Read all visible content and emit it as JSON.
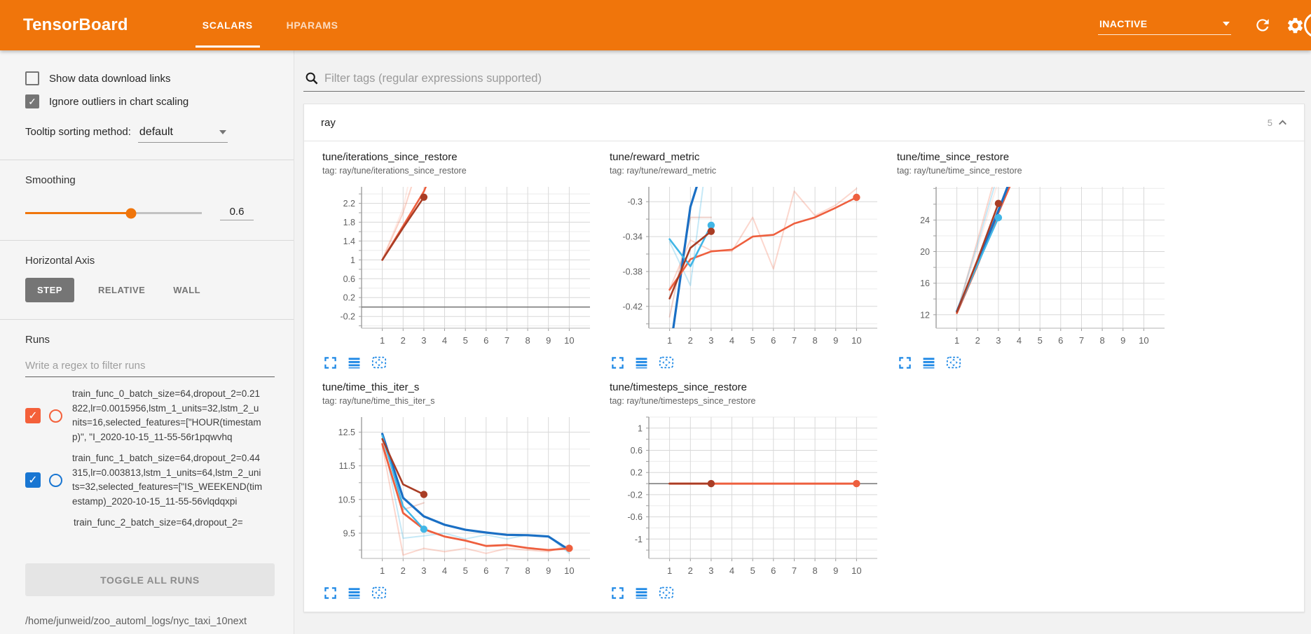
{
  "header": {
    "logo": "TensorBoard",
    "tabs": [
      {
        "label": "SCALARS",
        "active": true
      },
      {
        "label": "HPARAMS",
        "active": false
      }
    ],
    "status": "INACTIVE",
    "colors": {
      "header_bg": "#f0750b",
      "accent": "#f0750b",
      "icon_blue": "#1e88e5"
    }
  },
  "sidebar": {
    "checkboxes": [
      {
        "label": "Show data download links",
        "checked": false
      },
      {
        "label": "Ignore outliers in chart scaling",
        "checked": true
      }
    ],
    "tooltip_sorting": {
      "label": "Tooltip sorting method:",
      "value": "default"
    },
    "smoothing": {
      "label": "Smoothing",
      "value": "0.6",
      "percent": 60
    },
    "horizontal_axis": {
      "label": "Horizontal Axis",
      "options": [
        {
          "label": "STEP",
          "active": true
        },
        {
          "label": "RELATIVE",
          "active": false
        },
        {
          "label": "WALL",
          "active": false
        }
      ]
    },
    "runs": {
      "label": "Runs",
      "filter_placeholder": "Write a regex to filter runs",
      "items": [
        {
          "label": "train_func_0_batch_size=64,dropout_2=0.21822,lr=0.0015956,lstm_1_units=32,lstm_2_units=16,selected_features=[\"HOUR(timestamp)\", \"I_2020-10-15_11-55-56r1pqwvhq",
          "checked": true,
          "color": "#f4603a"
        },
        {
          "label": "train_func_1_batch_size=64,dropout_2=0.44315,lr=0.003813,lstm_1_units=64,lstm_2_units=32,selected_features=[\"IS_WEEKEND(timestamp)_2020-10-15_11-55-56vlqdqxpi",
          "checked": true,
          "color": "#1976d2"
        },
        {
          "label": "train_func_2_batch_size=64,dropout_2=",
          "checked": true,
          "color": "#9e9e9e",
          "partial": true
        }
      ],
      "toggle_all_label": "TOGGLE ALL RUNS",
      "log_path": "/home/junweid/zoo_automl_logs/nyc_taxi_10next"
    }
  },
  "main": {
    "filter_placeholder": "Filter tags (regular expressions supported)",
    "section": {
      "name": "ray",
      "count": "5"
    },
    "chart_action_names": [
      "fullscreen-icon",
      "flip-axis-icon",
      "fit-domain-icon"
    ]
  },
  "chart_data": [
    {
      "type": "line",
      "title": "tune/iterations_since_restore",
      "tag": "tag: ray/tune/iterations_since_restore",
      "xlim": [
        0,
        11
      ],
      "ylim": [
        -0.45,
        2.55
      ],
      "xticks": [
        1,
        2,
        3,
        4,
        5,
        6,
        7,
        8,
        9,
        10
      ],
      "yticks": [
        -0.2,
        0.2,
        0.6,
        1,
        1.4,
        1.8,
        2.2
      ],
      "baseline": 0,
      "series": [
        {
          "name": "raw-orange",
          "color": "#f4603a",
          "opacity": 0.28,
          "width": 2,
          "points": [
            [
              1,
              1
            ],
            [
              2,
              2
            ],
            [
              2.8,
              3.1
            ]
          ]
        },
        {
          "name": "raw-orange-2",
          "color": "#f4603a",
          "opacity": 0.12,
          "width": 2,
          "points": [
            [
              1,
              1
            ],
            [
              2,
              2.1
            ],
            [
              2.6,
              3.3
            ]
          ]
        },
        {
          "name": "smoothed-orange",
          "color": "#ee5f3e",
          "opacity": 1,
          "width": 2.6,
          "points": [
            [
              1,
              1
            ],
            [
              2,
              1.72
            ],
            [
              3,
              2.45
            ],
            [
              3.7,
              3.2
            ]
          ]
        },
        {
          "name": "smoothed-red",
          "color": "#a93d25",
          "opacity": 1,
          "width": 2.6,
          "points": [
            [
              1,
              1
            ],
            [
              2,
              1.68
            ],
            [
              3,
              2.33
            ]
          ],
          "dot": true
        }
      ]
    },
    {
      "type": "line",
      "title": "tune/reward_metric",
      "tag": "tag: ray/tune/reward_metric",
      "xlim": [
        0,
        11
      ],
      "ylim": [
        -0.445,
        -0.283
      ],
      "xticks": [
        1,
        2,
        3,
        4,
        5,
        6,
        7,
        8,
        9,
        10
      ],
      "yticks": [
        -0.42,
        -0.38,
        -0.34,
        -0.3
      ],
      "baseline": null,
      "series": [
        {
          "name": "raw-orange",
          "color": "#f4603a",
          "opacity": 0.25,
          "width": 2,
          "points": [
            [
              1,
              -0.4
            ],
            [
              2,
              -0.344
            ],
            [
              3,
              -0.356
            ],
            [
              4,
              -0.357
            ],
            [
              5,
              -0.318
            ],
            [
              6,
              -0.377
            ],
            [
              7,
              -0.288
            ],
            [
              8,
              -0.316
            ],
            [
              9,
              -0.304
            ],
            [
              10,
              -0.285
            ]
          ]
        },
        {
          "name": "raw-red",
          "color": "#c0492f",
          "opacity": 0.25,
          "width": 2,
          "points": [
            [
              1,
              -0.432
            ],
            [
              2,
              -0.318
            ],
            [
              3,
              -0.318
            ]
          ]
        },
        {
          "name": "raw-lightblue",
          "color": "#41b6e6",
          "opacity": 0.3,
          "width": 2,
          "points": [
            [
              1,
              -0.346
            ],
            [
              2,
              -0.396
            ],
            [
              3,
              -0.21
            ]
          ]
        },
        {
          "name": "smoothed-blue",
          "color": "#1a6fc4",
          "opacity": 1,
          "width": 3.2,
          "points": [
            [
              1,
              -0.475
            ],
            [
              2,
              -0.306
            ],
            [
              3,
              -0.23
            ]
          ]
        },
        {
          "name": "smoothed-orange",
          "color": "#ee5f3e",
          "opacity": 1,
          "width": 2.6,
          "points": [
            [
              1,
              -0.401
            ],
            [
              2,
              -0.366
            ],
            [
              3,
              -0.357
            ],
            [
              4,
              -0.355
            ],
            [
              5,
              -0.34
            ],
            [
              6,
              -0.338
            ],
            [
              7,
              -0.325
            ],
            [
              8,
              -0.318
            ],
            [
              9,
              -0.307
            ],
            [
              10,
              -0.295
            ]
          ],
          "dot": true
        },
        {
          "name": "smoothed-cyan",
          "color": "#41b6e6",
          "opacity": 1,
          "width": 2.6,
          "points": [
            [
              1,
              -0.343
            ],
            [
              2,
              -0.374
            ],
            [
              3,
              -0.327
            ]
          ],
          "dot": true
        },
        {
          "name": "smoothed-red",
          "color": "#a93d25",
          "opacity": 1,
          "width": 2.6,
          "points": [
            [
              1,
              -0.411
            ],
            [
              2,
              -0.353
            ],
            [
              3,
              -0.334
            ]
          ],
          "dot": true
        }
      ]
    },
    {
      "type": "line",
      "title": "tune/time_since_restore",
      "tag": "tag: ray/tune/time_since_restore",
      "xlim": [
        0,
        11
      ],
      "ylim": [
        10.3,
        28.2
      ],
      "xticks": [
        1,
        2,
        3,
        4,
        5,
        6,
        7,
        8,
        9,
        10
      ],
      "yticks": [
        12,
        16,
        20,
        24
      ],
      "baseline": null,
      "series": [
        {
          "name": "raw-orange",
          "color": "#f4603a",
          "opacity": 0.25,
          "width": 2,
          "points": [
            [
              1,
              12.2
            ],
            [
              2,
              21.5
            ],
            [
              3,
              31
            ]
          ]
        },
        {
          "name": "raw-orange-2",
          "color": "#f4603a",
          "opacity": 0.12,
          "width": 2,
          "points": [
            [
              1,
              12.2
            ],
            [
              2,
              20.5
            ],
            [
              3,
              29
            ]
          ]
        },
        {
          "name": "raw-lightblue",
          "color": "#41b6e6",
          "opacity": 0.3,
          "width": 2,
          "points": [
            [
              1,
              12.4
            ],
            [
              2,
              21
            ],
            [
              3,
              30
            ]
          ]
        },
        {
          "name": "smoothed-orange",
          "color": "#ee5f3e",
          "opacity": 1,
          "width": 2.6,
          "points": [
            [
              1,
              12.2
            ],
            [
              2,
              18.3
            ],
            [
              3,
              24.9
            ],
            [
              4,
              31
            ]
          ]
        },
        {
          "name": "smoothed-blue",
          "color": "#1a6fc4",
          "opacity": 1,
          "width": 3.2,
          "points": [
            [
              1,
              12.45
            ],
            [
              2,
              18.6
            ],
            [
              3,
              25.2
            ],
            [
              4,
              32
            ]
          ]
        },
        {
          "name": "smoothed-cyan",
          "color": "#41b6e6",
          "opacity": 1,
          "width": 2.4,
          "points": [
            [
              1,
              12.4
            ],
            [
              2,
              18.4
            ],
            [
              3,
              24.3
            ]
          ],
          "dot": true
        },
        {
          "name": "smoothed-red",
          "color": "#a93d25",
          "opacity": 1,
          "width": 2.6,
          "points": [
            [
              1,
              12.35
            ],
            [
              2,
              19
            ],
            [
              3,
              26.1
            ]
          ],
          "dot": true
        }
      ]
    },
    {
      "type": "line",
      "title": "tune/time_this_iter_s",
      "tag": "tag: ray/tune/time_this_iter_s",
      "xlim": [
        0,
        11
      ],
      "ylim": [
        8.75,
        12.95
      ],
      "xticks": [
        1,
        2,
        3,
        4,
        5,
        6,
        7,
        8,
        9,
        10
      ],
      "yticks": [
        9.5,
        10.5,
        11.5,
        12.5
      ],
      "baseline": null,
      "series": [
        {
          "name": "raw-orange",
          "color": "#f4603a",
          "opacity": 0.25,
          "width": 2,
          "points": [
            [
              1,
              12.1
            ],
            [
              2,
              8.85
            ],
            [
              3,
              9.05
            ],
            [
              4,
              8.95
            ],
            [
              5,
              9.05
            ],
            [
              6,
              8.9
            ],
            [
              7,
              9.05
            ],
            [
              8,
              9.0
            ],
            [
              9,
              8.95
            ],
            [
              10,
              9.15
            ]
          ]
        },
        {
          "name": "raw-red",
          "color": "#c0492f",
          "opacity": 0.25,
          "width": 2,
          "points": [
            [
              1,
              12.1
            ],
            [
              2,
              10.2
            ],
            [
              3,
              10.4
            ]
          ]
        },
        {
          "name": "raw-lightblue",
          "color": "#41b6e6",
          "opacity": 0.3,
          "width": 2,
          "points": [
            [
              1,
              12.4
            ],
            [
              2,
              9.35
            ],
            [
              3,
              9.42
            ],
            [
              4,
              9.5
            ],
            [
              5,
              9.33
            ],
            [
              6,
              9.45
            ],
            [
              7,
              9.33
            ],
            [
              8,
              9.45
            ],
            [
              9,
              9.42
            ],
            [
              10,
              8.9
            ]
          ]
        },
        {
          "name": "smoothed-blue",
          "color": "#1a6fc4",
          "opacity": 1,
          "width": 3.2,
          "points": [
            [
              1,
              12.45
            ],
            [
              2,
              10.55
            ],
            [
              3,
              10.0
            ],
            [
              4,
              9.75
            ],
            [
              5,
              9.6
            ],
            [
              6,
              9.52
            ],
            [
              7,
              9.45
            ],
            [
              8,
              9.44
            ],
            [
              9,
              9.4
            ],
            [
              10,
              9.0
            ]
          ]
        },
        {
          "name": "smoothed-orange",
          "color": "#ee5f3e",
          "opacity": 1,
          "width": 2.8,
          "points": [
            [
              1,
              12.15
            ],
            [
              2,
              10.1
            ],
            [
              3,
              9.62
            ],
            [
              4,
              9.4
            ],
            [
              5,
              9.28
            ],
            [
              6,
              9.12
            ],
            [
              7,
              9.15
            ],
            [
              8,
              9.06
            ],
            [
              9,
              9.0
            ],
            [
              10,
              9.05
            ]
          ],
          "dot": true
        },
        {
          "name": "smoothed-cyan",
          "color": "#41b6e6",
          "opacity": 1,
          "width": 2.4,
          "points": [
            [
              1,
              12.4
            ],
            [
              2,
              10.3
            ],
            [
              3,
              9.62
            ]
          ],
          "dot": true
        },
        {
          "name": "smoothed-red",
          "color": "#a93d25",
          "opacity": 1,
          "width": 2.6,
          "points": [
            [
              1,
              12.3
            ],
            [
              2,
              10.95
            ],
            [
              3,
              10.65
            ]
          ],
          "dot": true
        }
      ]
    },
    {
      "type": "line",
      "title": "tune/timesteps_since_restore",
      "tag": "tag: ray/tune/timesteps_since_restore",
      "xlim": [
        0,
        11
      ],
      "ylim": [
        -1.35,
        1.2
      ],
      "xticks": [
        1,
        2,
        3,
        4,
        5,
        6,
        7,
        8,
        9,
        10
      ],
      "yticks": [
        -1,
        -0.6,
        -0.2,
        0.2,
        0.6,
        1
      ],
      "baseline": 0,
      "series": [
        {
          "name": "smoothed-orange",
          "color": "#ee5f3e",
          "opacity": 1,
          "width": 3,
          "points": [
            [
              1,
              0
            ],
            [
              10,
              0
            ]
          ],
          "dot": true
        },
        {
          "name": "smoothed-red",
          "color": "#a93d25",
          "opacity": 1,
          "width": 2.6,
          "points": [
            [
              1,
              0
            ],
            [
              3,
              0
            ]
          ],
          "dot": true
        }
      ]
    }
  ]
}
